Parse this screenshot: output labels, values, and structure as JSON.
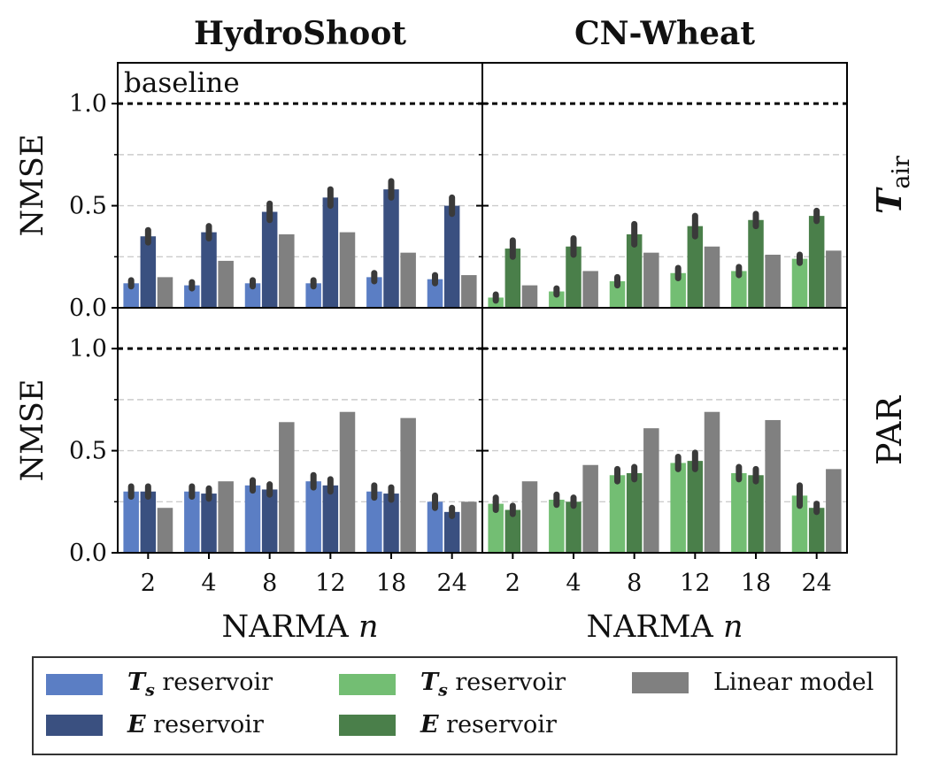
{
  "columns": [
    "HydroShoot",
    "CN-Wheat"
  ],
  "row_labels": [
    "T",
    "PAR"
  ],
  "row_label_sub": "air",
  "baseline_label": "baseline",
  "colors": {
    "hs_ts": "#5b7ec4",
    "hs_e": "#3a5080",
    "cw_ts": "#73be73",
    "cw_e": "#4a7f4a",
    "linear": "#808080",
    "error": "#3a3a3a",
    "grid": "#cccccc"
  },
  "legend": [
    {
      "sym": "T",
      "sub": "s",
      "text": " reservoir",
      "color_key": "hs_ts"
    },
    {
      "sym": "E",
      "sub": "",
      "text": " reservoir",
      "color_key": "hs_e"
    },
    {
      "sym": "T",
      "sub": "s",
      "text": " reservoir",
      "color_key": "cw_ts"
    },
    {
      "sym": "E",
      "sub": "",
      "text": " reservoir",
      "color_key": "cw_e"
    },
    {
      "sym": "",
      "sub": "",
      "text": "Linear model",
      "color_key": "linear"
    }
  ],
  "chart_data": [
    {
      "type": "bar",
      "title": "HydroShoot",
      "row": "T_air",
      "xlabel": "NARMA n",
      "ylabel": "NMSE",
      "ylim": [
        0,
        1.2
      ],
      "baseline": 1.0,
      "categories": [
        "2",
        "4",
        "8",
        "12",
        "18",
        "24"
      ],
      "series": [
        {
          "name": "Ts reservoir",
          "values": [
            0.12,
            0.11,
            0.12,
            0.12,
            0.15,
            0.14
          ],
          "err": [
            0.015,
            0.015,
            0.015,
            0.015,
            0.02,
            0.02
          ]
        },
        {
          "name": "E reservoir",
          "values": [
            0.35,
            0.37,
            0.47,
            0.54,
            0.58,
            0.5
          ],
          "err": [
            0.03,
            0.03,
            0.04,
            0.04,
            0.04,
            0.04
          ]
        },
        {
          "name": "Linear model",
          "values": [
            0.15,
            0.23,
            0.36,
            0.37,
            0.27,
            0.16
          ]
        }
      ]
    },
    {
      "type": "bar",
      "title": "CN-Wheat",
      "row": "T_air",
      "xlabel": "NARMA n",
      "ylabel": "NMSE",
      "ylim": [
        0,
        1.2
      ],
      "baseline": 1.0,
      "categories": [
        "2",
        "4",
        "8",
        "12",
        "18",
        "24"
      ],
      "series": [
        {
          "name": "Ts reservoir",
          "values": [
            0.05,
            0.08,
            0.13,
            0.17,
            0.18,
            0.24
          ],
          "err": [
            0.015,
            0.015,
            0.02,
            0.025,
            0.02,
            0.02
          ]
        },
        {
          "name": "E reservoir",
          "values": [
            0.29,
            0.3,
            0.36,
            0.4,
            0.43,
            0.45
          ],
          "err": [
            0.04,
            0.04,
            0.05,
            0.05,
            0.03,
            0.025
          ]
        },
        {
          "name": "Linear model",
          "values": [
            0.11,
            0.18,
            0.27,
            0.3,
            0.26,
            0.28
          ]
        }
      ]
    },
    {
      "type": "bar",
      "title": "HydroShoot",
      "row": "PAR",
      "xlabel": "NARMA n",
      "ylabel": "NMSE",
      "ylim": [
        0,
        1.2
      ],
      "baseline": 1.0,
      "categories": [
        "2",
        "4",
        "8",
        "12",
        "18",
        "24"
      ],
      "series": [
        {
          "name": "Ts reservoir",
          "values": [
            0.3,
            0.3,
            0.33,
            0.35,
            0.3,
            0.25
          ],
          "err": [
            0.025,
            0.025,
            0.025,
            0.03,
            0.03,
            0.03
          ]
        },
        {
          "name": "E reservoir",
          "values": [
            0.3,
            0.29,
            0.31,
            0.33,
            0.29,
            0.2
          ],
          "err": [
            0.025,
            0.025,
            0.025,
            0.03,
            0.03,
            0.02
          ]
        },
        {
          "name": "Linear model",
          "values": [
            0.22,
            0.35,
            0.64,
            0.69,
            0.66,
            0.25
          ]
        }
      ]
    },
    {
      "type": "bar",
      "title": "CN-Wheat",
      "row": "PAR",
      "xlabel": "NARMA n",
      "ylabel": "NMSE",
      "ylim": [
        0,
        1.2
      ],
      "baseline": 1.0,
      "categories": [
        "2",
        "4",
        "8",
        "12",
        "18",
        "24"
      ],
      "series": [
        {
          "name": "Ts reservoir",
          "values": [
            0.24,
            0.26,
            0.38,
            0.44,
            0.39,
            0.28
          ],
          "err": [
            0.03,
            0.025,
            0.03,
            0.03,
            0.03,
            0.05
          ]
        },
        {
          "name": "E reservoir",
          "values": [
            0.21,
            0.25,
            0.39,
            0.45,
            0.38,
            0.22
          ],
          "err": [
            0.02,
            0.02,
            0.03,
            0.04,
            0.03,
            0.02
          ]
        },
        {
          "name": "Linear model",
          "values": [
            0.35,
            0.43,
            0.61,
            0.69,
            0.65,
            0.41
          ]
        }
      ]
    }
  ]
}
